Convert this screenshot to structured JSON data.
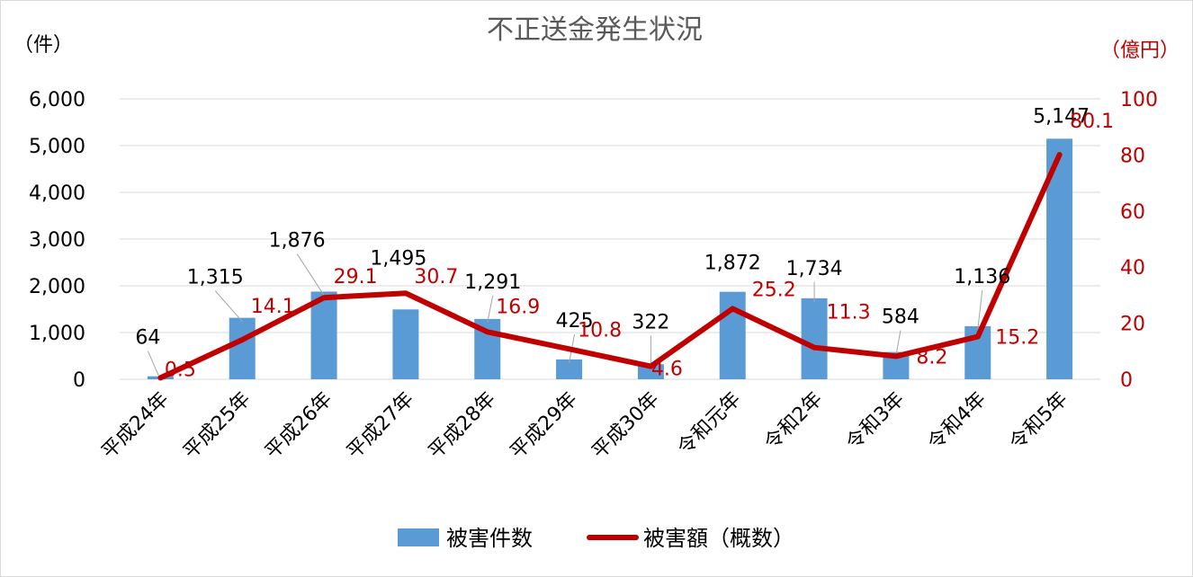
{
  "chart_data": {
    "type": "bar",
    "title": "不正送金発生状況",
    "categories": [
      "平成24年",
      "平成25年",
      "平成26年",
      "平成27年",
      "平成28年",
      "平成29年",
      "平成30年",
      "令和元年",
      "令和2年",
      "令和3年",
      "令和4年",
      "令和5年"
    ],
    "series": [
      {
        "name": "被害件数",
        "type": "bar",
        "axis": "left",
        "color": "#5b9bd5",
        "values": [
          64,
          1315,
          1876,
          1495,
          1291,
          425,
          322,
          1872,
          1734,
          584,
          1136,
          5147
        ],
        "labels": [
          "64",
          "1,315",
          "1,876",
          "1,495",
          "1,291",
          "425",
          "322",
          "1,872",
          "1,734",
          "584",
          "1,136",
          "5,147"
        ]
      },
      {
        "name": "被害額（概数）",
        "type": "line",
        "axis": "right",
        "color": "#c00000",
        "values": [
          0.5,
          14.1,
          29.1,
          30.7,
          16.9,
          10.8,
          4.6,
          25.2,
          11.3,
          8.2,
          15.2,
          80.1
        ],
        "labels": [
          "0.5",
          "14.1",
          "29.1",
          "30.7",
          "16.9",
          "10.8",
          "4.6",
          "25.2",
          "11.3",
          "8.2",
          "15.2",
          "80.1"
        ]
      }
    ],
    "y_left": {
      "unit": "（件）",
      "ylim": [
        0,
        6000
      ],
      "ticks": [
        0,
        1000,
        2000,
        3000,
        4000,
        5000,
        6000
      ],
      "tick_labels": [
        "0",
        "1,000",
        "2,000",
        "3,000",
        "4,000",
        "5,000",
        "6,000"
      ]
    },
    "y_right": {
      "unit": "（億円）",
      "ylim": [
        0,
        100
      ],
      "ticks": [
        0,
        20,
        40,
        60,
        80,
        100
      ],
      "tick_labels": [
        "0",
        "20",
        "40",
        "60",
        "80",
        "100"
      ]
    },
    "grid": true,
    "legend_position": "bottom"
  }
}
